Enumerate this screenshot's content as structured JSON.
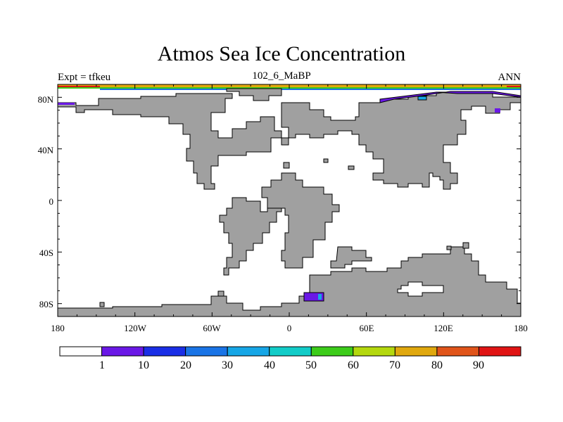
{
  "title": "Atmos Sea Ice Concentration",
  "subtitle_left": "Expt = tfkeu",
  "subtitle_center": "102_6_MaBP",
  "subtitle_right": "ANN",
  "axes": {
    "x_ticks": [
      "180",
      "120W",
      "60W",
      "0",
      "60E",
      "120E",
      "180"
    ],
    "y_ticks": [
      "80N",
      "40N",
      "0",
      "40S",
      "80S"
    ]
  },
  "colorbar": {
    "labels": [
      "1",
      "10",
      "20",
      "30",
      "40",
      "50",
      "60",
      "70",
      "80",
      "90"
    ],
    "colors": [
      "#ffffff",
      "#6a18e6",
      "#1a2ee6",
      "#1a74e6",
      "#16a6e6",
      "#12ccc8",
      "#3ccc1a",
      "#b4d80e",
      "#e0a80e",
      "#e0541a",
      "#e01414"
    ]
  },
  "colors": {
    "land": "#a0a0a0",
    "ocean": "#ffffff"
  }
}
